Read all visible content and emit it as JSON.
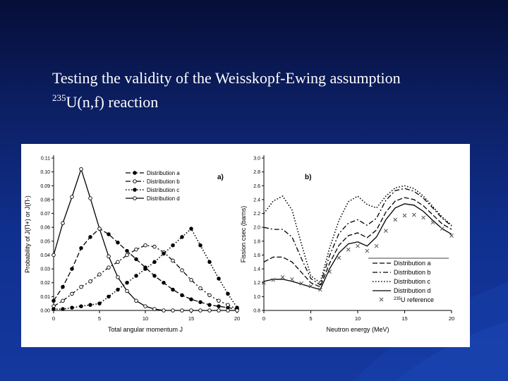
{
  "slide": {
    "title": "Testing the validity of the Weisskopf-Ewing assumption",
    "subtitle_sup": "235",
    "subtitle_rest": "U(n,f) reaction",
    "colors": {
      "background_top": "#060e38",
      "background_bottom": "#14389f",
      "text": "#ffffff"
    }
  },
  "chart_data": [
    {
      "type": "line",
      "panel_label": "a)",
      "xlabel": "Total angular momentum J",
      "ylabel": "Probability of J(Π+) or J(Π-)",
      "xlim": [
        0,
        20
      ],
      "ylim": [
        0,
        0.11
      ],
      "x_ticks": [
        "0",
        "5",
        "10",
        "15",
        "20"
      ],
      "y_ticks": [
        "0.00",
        "0.01",
        "0.02",
        "0.03",
        "0.04",
        "0.05",
        "0.06",
        "0.07",
        "0.08",
        "0.09",
        "0.10",
        "0.11"
      ],
      "legend_position": "top-right",
      "x": [
        0,
        1,
        2,
        3,
        4,
        5,
        6,
        7,
        8,
        9,
        10,
        11,
        12,
        13,
        14,
        15,
        16,
        17,
        18,
        19,
        20
      ],
      "series": [
        {
          "name": "Distribution a",
          "marker": "filled-circle",
          "dash": "dash",
          "values": [
            0.007,
            0.017,
            0.03,
            0.045,
            0.053,
            0.059,
            0.055,
            0.049,
            0.043,
            0.037,
            0.031,
            0.025,
            0.02,
            0.015,
            0.011,
            0.008,
            0.006,
            0.004,
            0.003,
            0.002,
            0.001
          ]
        },
        {
          "name": "Distribution b",
          "marker": "open-circle",
          "dash": "dashdot",
          "values": [
            0.003,
            0.007,
            0.012,
            0.017,
            0.021,
            0.026,
            0.031,
            0.035,
            0.04,
            0.044,
            0.047,
            0.046,
            0.042,
            0.036,
            0.029,
            0.022,
            0.016,
            0.011,
            0.007,
            0.004,
            0.001
          ]
        },
        {
          "name": "Distribution c",
          "marker": "filled-circle",
          "dash": "dot",
          "values": [
            0.001,
            0.001,
            0.002,
            0.003,
            0.004,
            0.005,
            0.01,
            0.015,
            0.02,
            0.025,
            0.03,
            0.035,
            0.041,
            0.047,
            0.053,
            0.059,
            0.047,
            0.035,
            0.023,
            0.012,
            0.002
          ]
        },
        {
          "name": "Distribution d",
          "marker": "open-circle",
          "dash": "solid",
          "values": [
            0.04,
            0.063,
            0.082,
            0.102,
            0.081,
            0.059,
            0.039,
            0.024,
            0.014,
            0.007,
            0.003,
            0.001,
            0.0,
            0.0,
            0.0,
            0.0,
            0.0,
            0.0,
            0.0,
            0.0,
            0.0
          ]
        }
      ]
    },
    {
      "type": "line",
      "panel_label": "b)",
      "xlabel": "Neutron energy (MeV)",
      "ylabel": "Fission csec (barns)",
      "xlim": [
        0,
        20
      ],
      "ylim": [
        0.8,
        3.0
      ],
      "x_ticks": [
        "0",
        "5",
        "10",
        "15",
        "20"
      ],
      "y_ticks": [
        "0.8",
        "1.0",
        "1.2",
        "1.4",
        "1.6",
        "1.8",
        "2.0",
        "2.2",
        "2.4",
        "2.6",
        "2.8",
        "3.0"
      ],
      "legend_position": "bottom-right",
      "x": [
        0,
        1,
        2,
        3,
        4,
        5,
        6,
        7,
        8,
        9,
        10,
        11,
        12,
        13,
        14,
        15,
        16,
        17,
        18,
        19,
        20
      ],
      "series": [
        {
          "name": "Distribution a",
          "dash": "dash",
          "values": [
            1.5,
            1.57,
            1.57,
            1.5,
            1.35,
            1.2,
            1.14,
            1.48,
            1.74,
            1.88,
            1.92,
            1.85,
            1.96,
            2.22,
            2.38,
            2.43,
            2.4,
            2.31,
            2.18,
            2.05,
            1.97
          ]
        },
        {
          "name": "Distribution b",
          "dash": "dashdot",
          "values": [
            2.0,
            1.97,
            1.97,
            1.86,
            1.55,
            1.26,
            1.17,
            1.59,
            1.91,
            2.06,
            2.11,
            2.03,
            2.13,
            2.39,
            2.53,
            2.56,
            2.52,
            2.42,
            2.28,
            2.13,
            2.02
          ]
        },
        {
          "name": "Distribution c",
          "dash": "dot",
          "values": [
            2.2,
            2.38,
            2.45,
            2.25,
            1.76,
            1.3,
            1.2,
            1.7,
            2.1,
            2.37,
            2.45,
            2.33,
            2.28,
            2.45,
            2.57,
            2.6,
            2.56,
            2.45,
            2.3,
            2.15,
            2.03
          ]
        },
        {
          "name": "Distribution d",
          "dash": "solid",
          "values": [
            1.22,
            1.25,
            1.25,
            1.22,
            1.18,
            1.14,
            1.1,
            1.4,
            1.63,
            1.76,
            1.79,
            1.73,
            1.86,
            2.11,
            2.28,
            2.34,
            2.32,
            2.23,
            2.1,
            1.98,
            1.9
          ]
        },
        {
          "name_sup": "235",
          "name_rest": "U reference",
          "marker": "cross",
          "dash": "none",
          "values": [
            1.2,
            1.24,
            1.28,
            1.25,
            1.19,
            1.15,
            1.1,
            1.36,
            1.56,
            1.68,
            1.73,
            1.66,
            1.73,
            1.95,
            2.11,
            2.17,
            2.18,
            2.14,
            2.07,
            1.98,
            1.88
          ]
        }
      ]
    }
  ]
}
